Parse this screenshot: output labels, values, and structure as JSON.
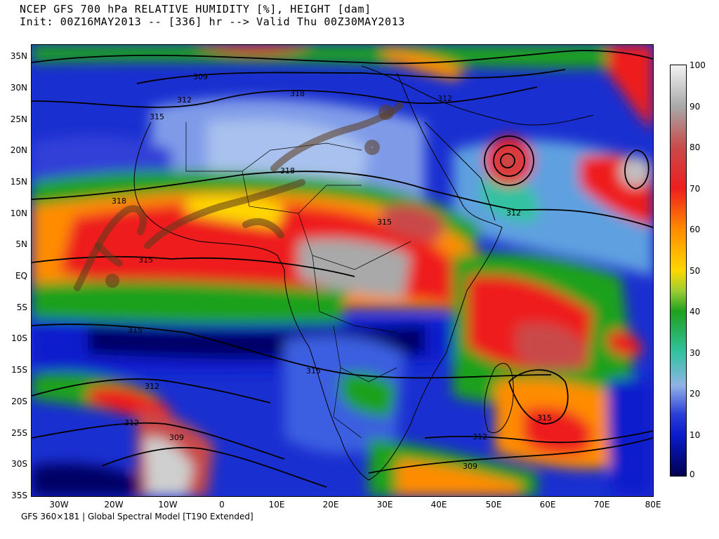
{
  "header": {
    "line1": "NCEP GFS 700 hPa RELATIVE HUMIDITY [%], HEIGHT [dam]",
    "line2": "Init: 00Z16MAY2013 -- [336] hr --> Valid Thu 00Z30MAY2013"
  },
  "footer": "GFS 360×181 | Global Spectral Model [T190 Extended]",
  "latitude_labels": [
    "35N",
    "30N",
    "25N",
    "20N",
    "15N",
    "10N",
    "5N",
    "EQ",
    "5S",
    "10S",
    "15S",
    "20S",
    "25S",
    "30S",
    "35S"
  ],
  "longitude_labels": [
    "30W",
    "20W",
    "10W",
    "0",
    "10E",
    "20E",
    "30E",
    "40E",
    "50E",
    "60E",
    "70E",
    "80E"
  ],
  "colorbar": {
    "ticks": [
      "100",
      "90",
      "80",
      "70",
      "60",
      "50",
      "40",
      "30",
      "20",
      "10",
      "0"
    ],
    "colors": [
      "#f2f2f2",
      "#a9a9a9",
      "#c94a4a",
      "#ee1e1e",
      "#ff8c00",
      "#ffd700",
      "#1fa11f",
      "#32c2a0",
      "#8fb3e6",
      "#0a1ccc",
      "#000050"
    ]
  },
  "contour_labels": [
    "309",
    "312",
    "318",
    "315",
    "312",
    "318",
    "318",
    "312",
    "315",
    "315",
    "315",
    "315",
    "312",
    "309",
    "315",
    "312",
    "312",
    "309"
  ]
}
